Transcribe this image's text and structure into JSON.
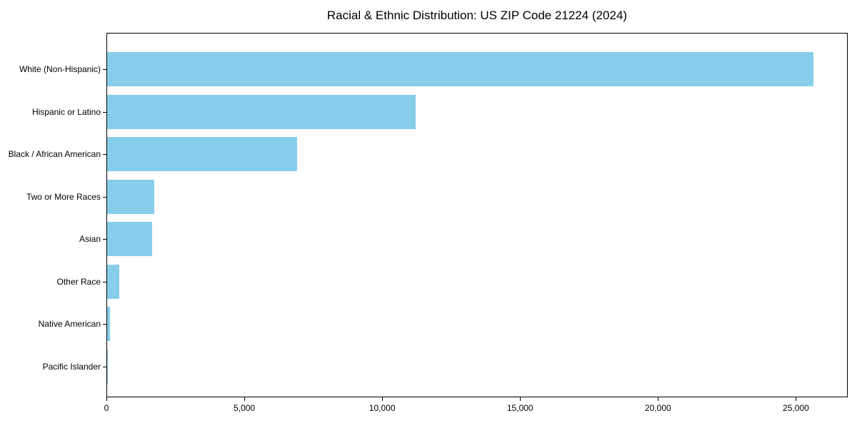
{
  "chart_data": {
    "type": "bar",
    "orientation": "horizontal",
    "title": "Racial & Ethnic Distribution: US ZIP Code 21224 (2024)",
    "categories": [
      "White (Non-Hispanic)",
      "Hispanic or Latino",
      "Black / African American",
      "Two or More Races",
      "Asian",
      "Other Race",
      "Native American",
      "Pacific Islander"
    ],
    "values": [
      25600,
      11190,
      6890,
      1700,
      1620,
      440,
      105,
      15
    ],
    "title_text": "Racial & Ethnic Distribution: US ZIP Code 21224 (2024)",
    "xlabel": "",
    "ylabel": "",
    "xlim": [
      0,
      26880
    ],
    "x_ticks": [
      0,
      5000,
      10000,
      15000,
      20000,
      25000
    ],
    "x_tick_labels": [
      "0",
      "5,000",
      "10,000",
      "15,000",
      "20,000",
      "25,000"
    ],
    "bar_color": "#87CEEB",
    "grid": false,
    "legend_position": "none",
    "background_color": "#ffffff",
    "spine_color": "#000000"
  }
}
